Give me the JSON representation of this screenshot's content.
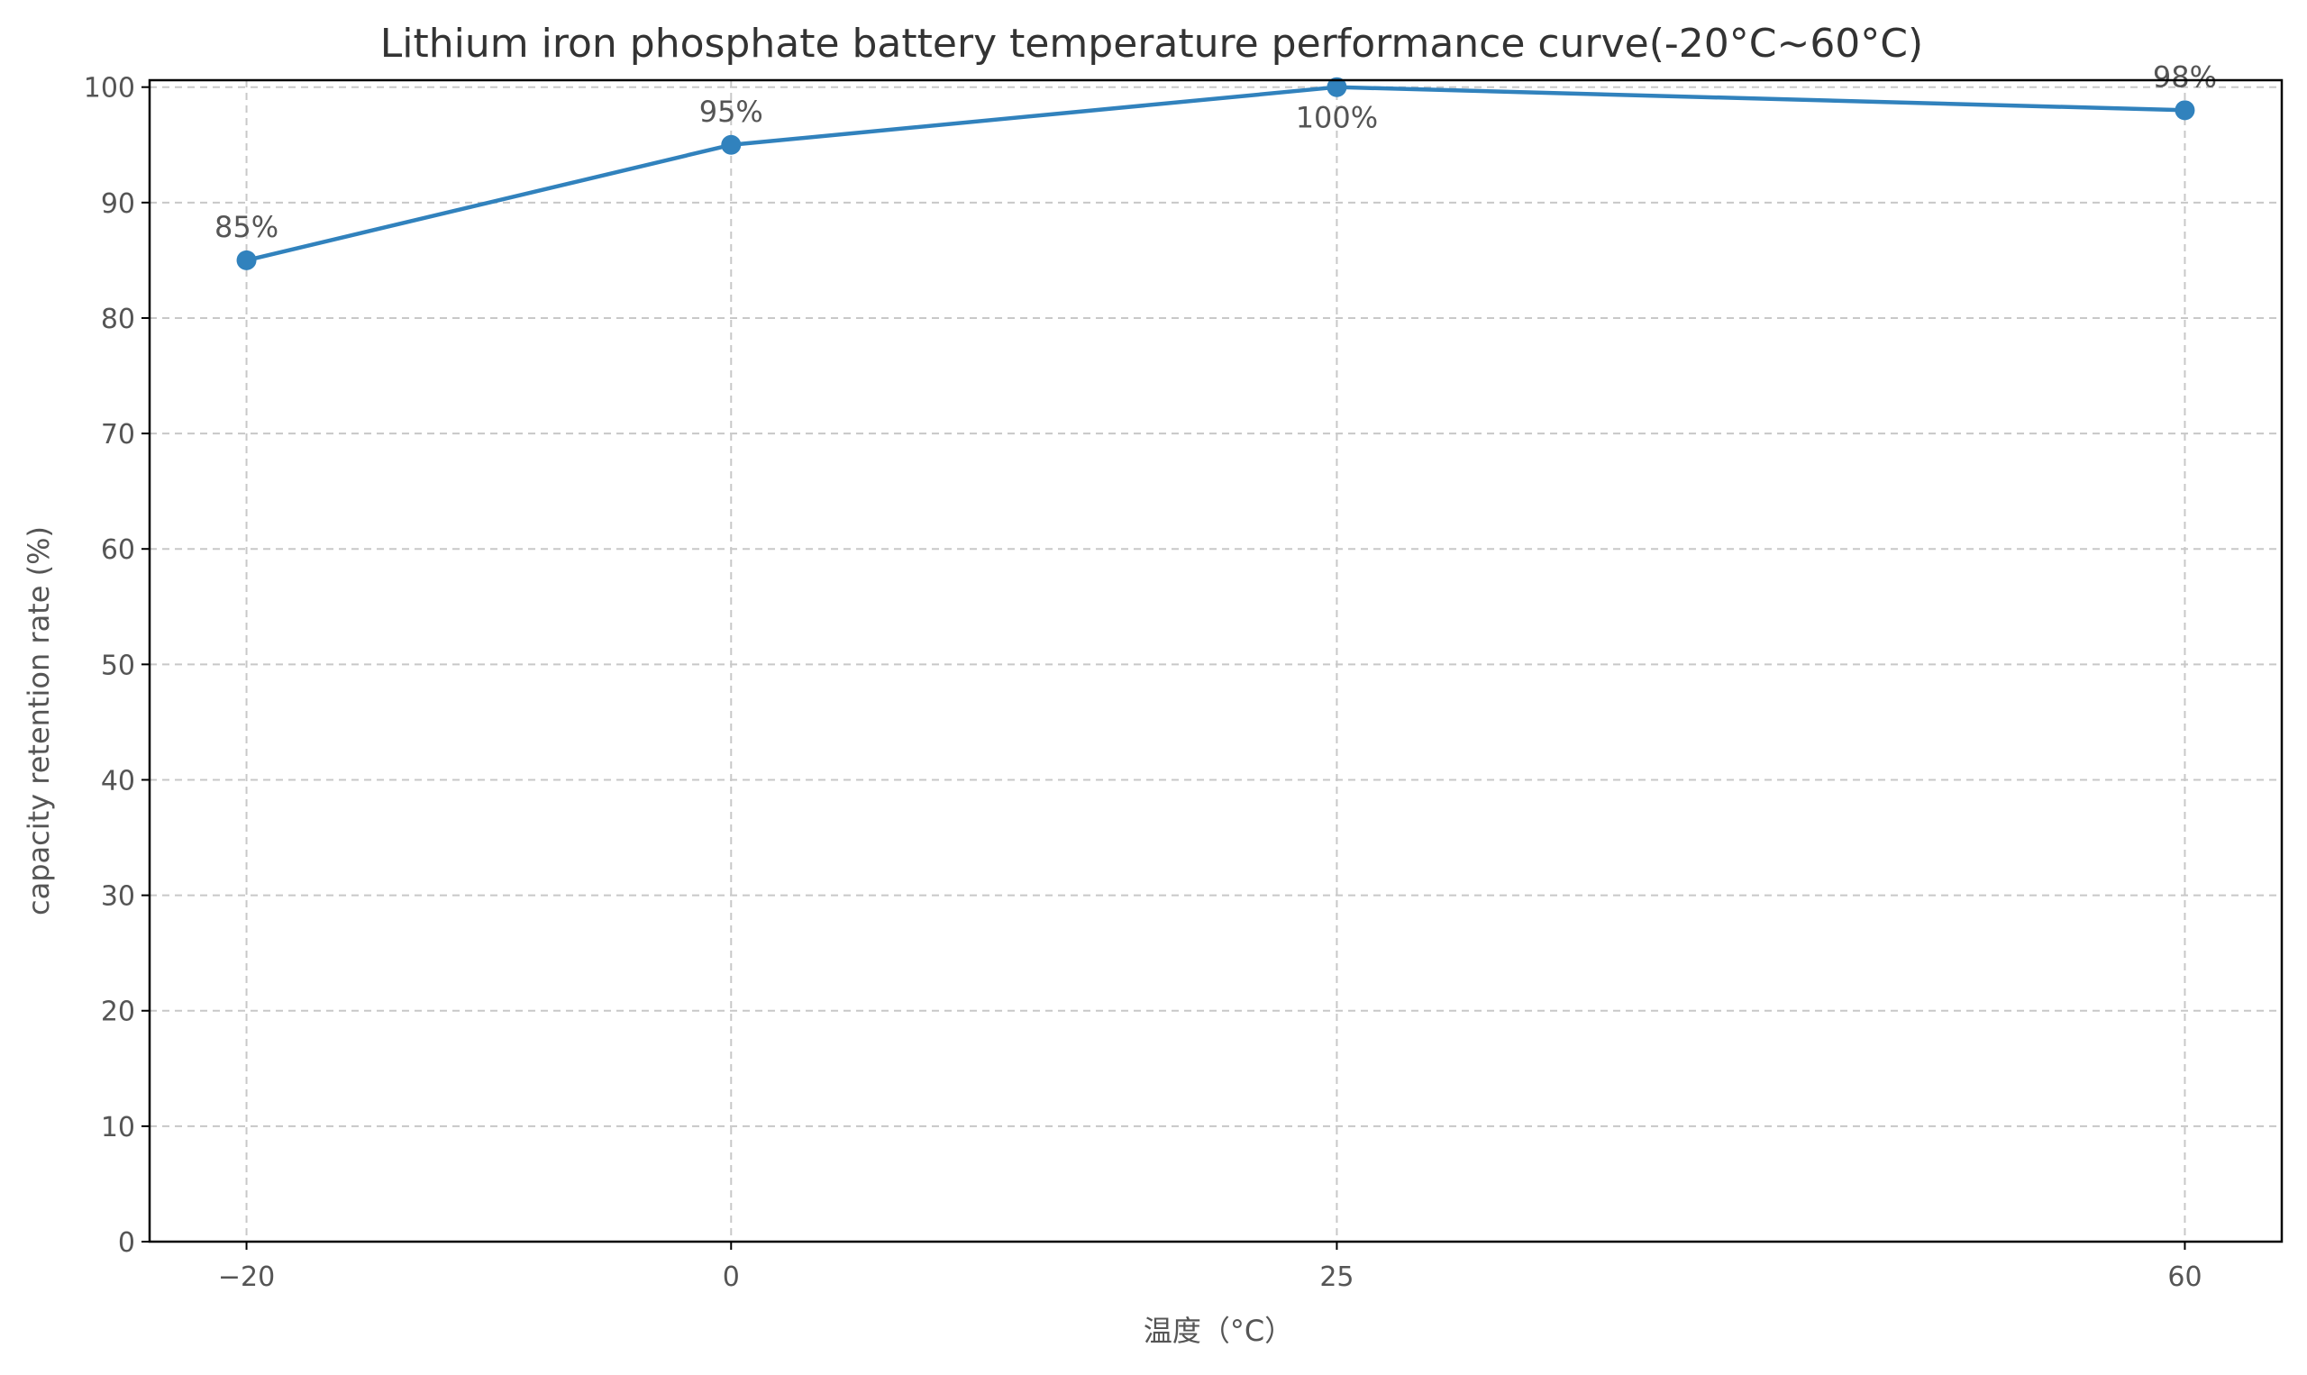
{
  "chart_data": {
    "type": "line",
    "title": "Lithium iron phosphate battery temperature performance curve(-20°C~60°C)",
    "xlabel": "温度（°C）",
    "ylabel": "capacity retention rate (%)",
    "x": [
      -20,
      0,
      25,
      60
    ],
    "x_tick_labels": [
      "−20",
      "0",
      "25",
      "60"
    ],
    "xlim": [
      -24,
      64
    ],
    "ylim": [
      0,
      100.6
    ],
    "y_ticks": [
      0,
      10,
      20,
      30,
      40,
      50,
      60,
      70,
      80,
      90,
      100
    ],
    "series": [
      {
        "values": [
          85,
          95,
          100,
          98
        ],
        "labels": [
          "85%",
          "95%",
          "100%",
          "98%"
        ],
        "label_position": [
          "above",
          "above",
          "below",
          "above"
        ],
        "color": "#3182bd"
      }
    ],
    "grid": true,
    "grid_style": "dashed",
    "legend": "none"
  }
}
